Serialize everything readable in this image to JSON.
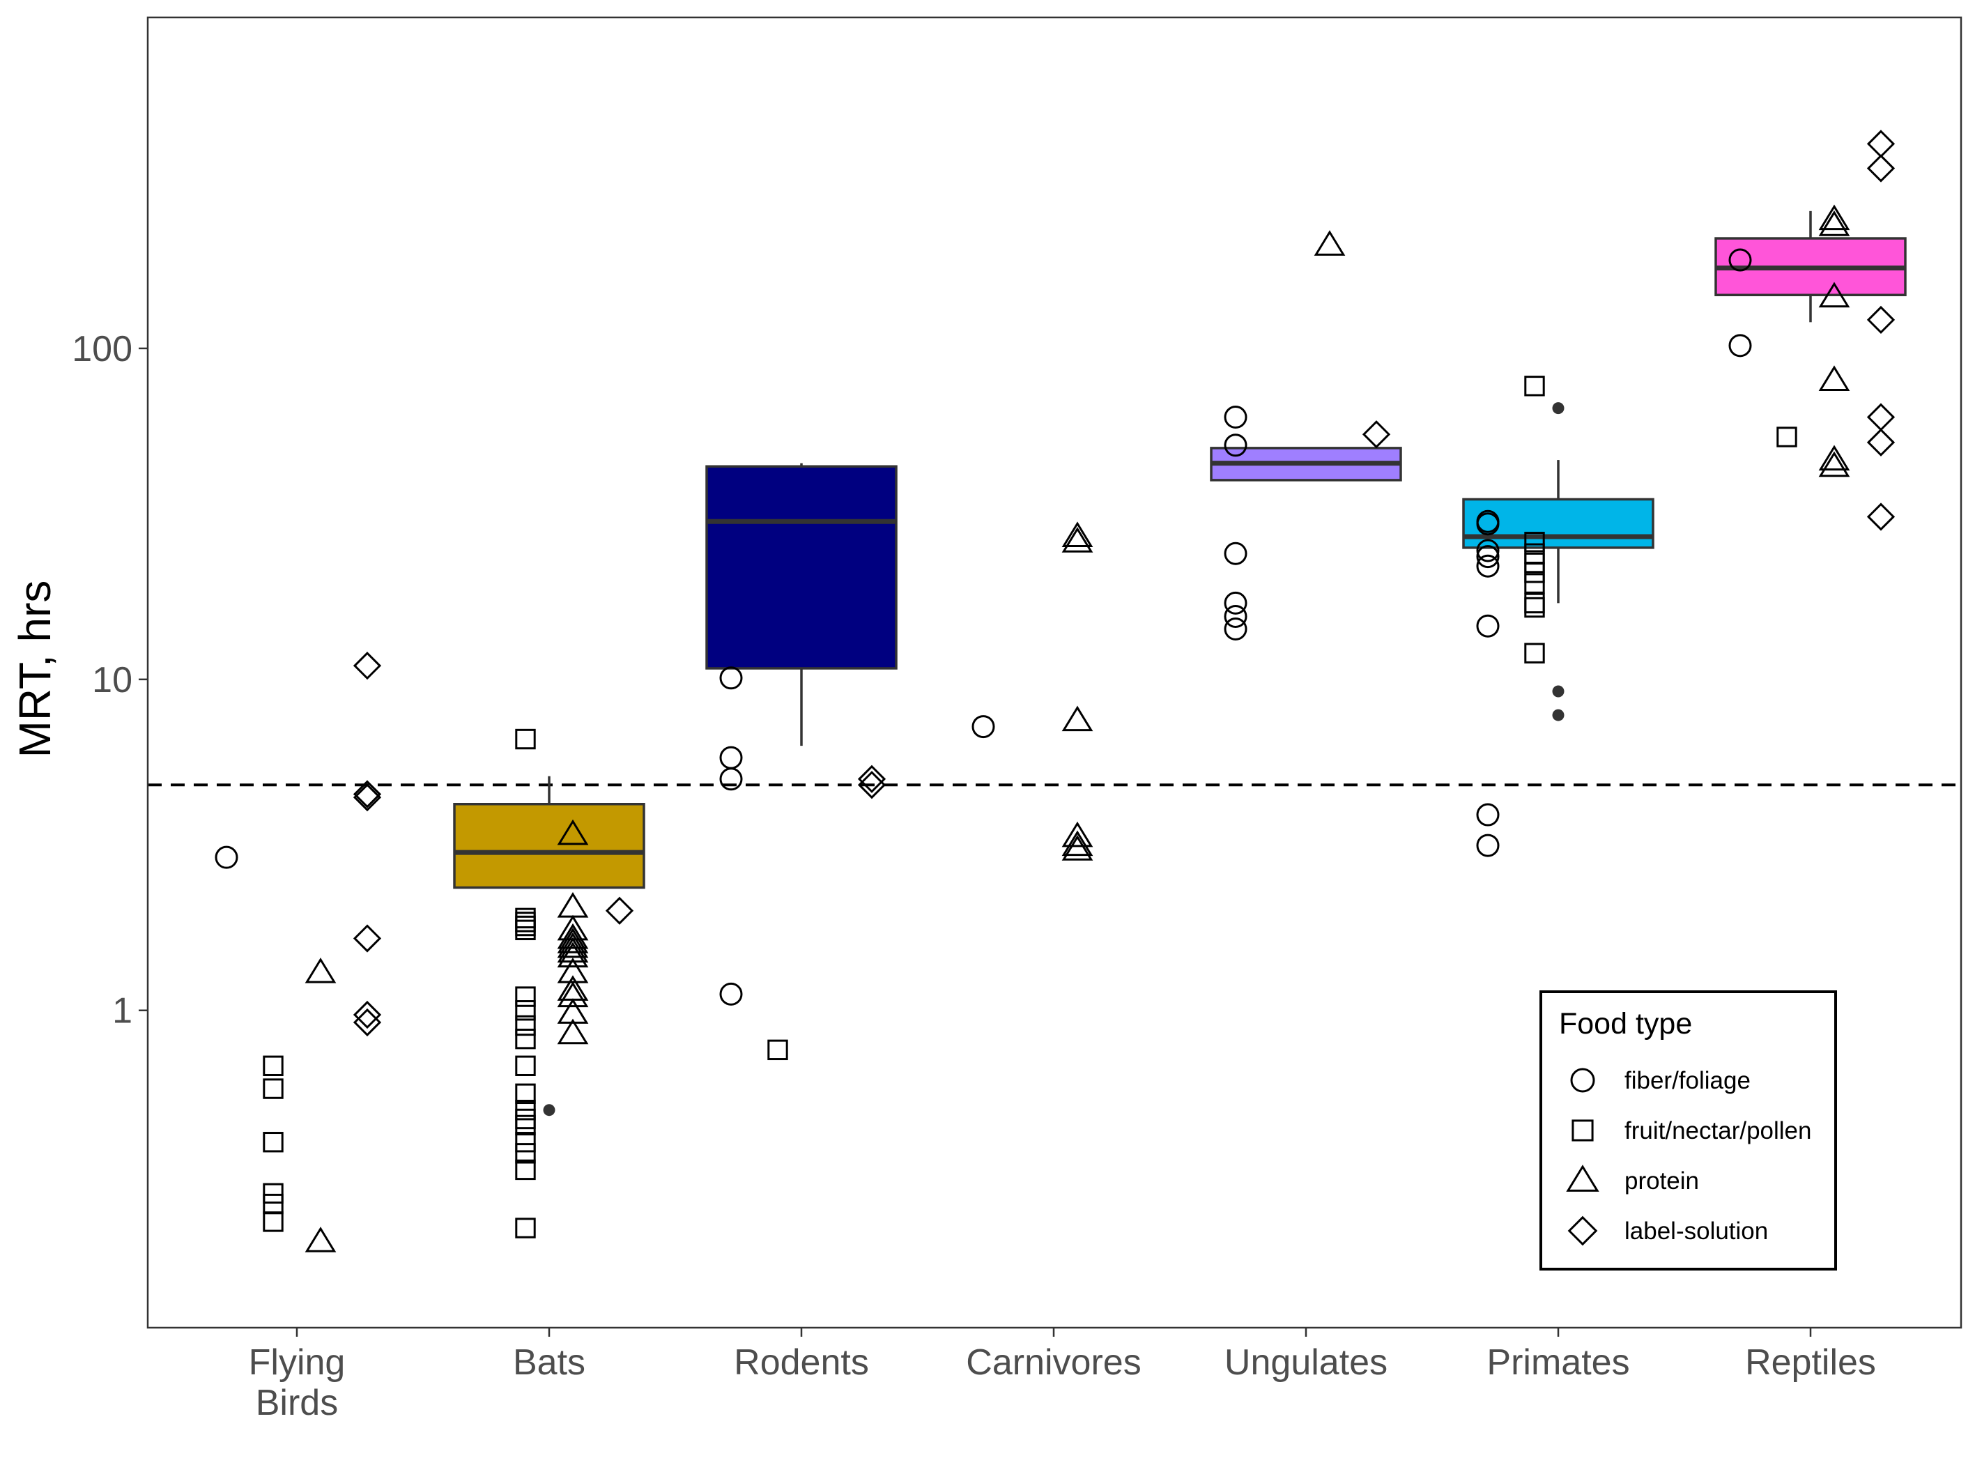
{
  "chart_data": {
    "type": "box+scatter",
    "ylabel": "MRT, hrs",
    "xlabel": "",
    "y_scale": "log10",
    "ylim": [
      0.11,
      1000
    ],
    "y_ticks": [
      {
        "value": 1,
        "label": "1"
      },
      {
        "value": 10,
        "label": "10"
      },
      {
        "value": 100,
        "label": "100"
      }
    ],
    "reference_line": {
      "y": 4.8,
      "style": "dashed"
    },
    "categories": [
      {
        "key": "birds",
        "label_lines": [
          "Flying",
          "Birds"
        ]
      },
      {
        "key": "bats",
        "label_lines": [
          "Bats"
        ]
      },
      {
        "key": "rodents",
        "label_lines": [
          "Rodents"
        ]
      },
      {
        "key": "carnivores",
        "label_lines": [
          "Carnivores"
        ]
      },
      {
        "key": "ungulates",
        "label_lines": [
          "Ungulates"
        ]
      },
      {
        "key": "primates",
        "label_lines": [
          "Primates"
        ]
      },
      {
        "key": "reptiles",
        "label_lines": [
          "Reptiles"
        ]
      }
    ],
    "boxes": [
      {
        "category": "bats",
        "q1": 2.35,
        "median": 3.0,
        "q3": 4.2,
        "whisker_low": 2.35,
        "whisker_high": 5.1,
        "fill": "#C39900",
        "outliers": [
          0.5
        ]
      },
      {
        "category": "rodents",
        "q1": 10.8,
        "median": 30.0,
        "q3": 44.0,
        "whisker_low": 6.3,
        "whisker_high": 45.0,
        "fill": "#000080",
        "outliers": []
      },
      {
        "category": "ungulates",
        "q1": 40.0,
        "median": 45.0,
        "q3": 50.0,
        "whisker_low": 40.0,
        "whisker_high": 50.0,
        "fill": "#9F7FFF",
        "outliers": []
      },
      {
        "category": "primates",
        "q1": 25.0,
        "median": 27.0,
        "q3": 35.0,
        "whisker_low": 17.0,
        "whisker_high": 46.0,
        "fill": "#00B5E8",
        "outliers": [
          66,
          9.2,
          7.8
        ]
      },
      {
        "category": "reptiles",
        "q1": 145.0,
        "median": 175.0,
        "q3": 215.0,
        "whisker_low": 120.0,
        "whisker_high": 260.0,
        "fill": "#FF55D9",
        "outliers": []
      }
    ],
    "legend": {
      "title": "Food type",
      "position": "bottom-right",
      "items": [
        {
          "key": "fiber",
          "label": "fiber/foliage",
          "shape": "circle"
        },
        {
          "key": "fruit",
          "label": "fruit/nectar/pollen",
          "shape": "square"
        },
        {
          "key": "protein",
          "label": "protein",
          "shape": "triangle"
        },
        {
          "key": "label",
          "label": "label-solution",
          "shape": "diamond"
        }
      ]
    },
    "points": [
      {
        "category": "birds",
        "food": "fiber",
        "values": [
          2.9
        ]
      },
      {
        "category": "birds",
        "food": "fruit",
        "values": [
          0.68,
          0.58,
          0.4,
          0.28,
          0.26,
          0.23
        ]
      },
      {
        "category": "birds",
        "food": "protein",
        "values": [
          1.3,
          0.2
        ]
      },
      {
        "category": "birds",
        "food": "label",
        "values": [
          11.0,
          4.5,
          4.4,
          1.65,
          0.97,
          0.92
        ]
      },
      {
        "category": "bats",
        "food": "fruit",
        "values": [
          6.6,
          1.9,
          1.85,
          1.8,
          1.75,
          1.1,
          1.0,
          0.9,
          0.82,
          0.68,
          0.56,
          0.5,
          0.47,
          0.45,
          0.4,
          0.37,
          0.33,
          0.22
        ]
      },
      {
        "category": "bats",
        "food": "protein",
        "values": [
          3.4,
          2.05,
          1.75,
          1.65,
          1.6,
          1.55,
          1.5,
          1.45,
          1.3,
          1.15,
          1.1,
          0.98,
          0.85
        ]
      },
      {
        "category": "bats",
        "food": "label",
        "values": [
          2.0
        ]
      },
      {
        "category": "rodents",
        "food": "fiber",
        "values": [
          10.1,
          5.8,
          5.0,
          1.12
        ]
      },
      {
        "category": "rodents",
        "food": "fruit",
        "values": [
          0.76
        ]
      },
      {
        "category": "rodents",
        "food": "label",
        "values": [
          5.0,
          4.8
        ]
      },
      {
        "category": "carnivores",
        "food": "fiber",
        "values": [
          7.2
        ]
      },
      {
        "category": "carnivores",
        "food": "protein",
        "values": [
          27.0,
          26.0,
          7.5,
          3.35,
          3.15,
          3.05
        ]
      },
      {
        "category": "ungulates",
        "food": "fiber",
        "values": [
          62.0,
          51.0,
          24.0,
          17.0,
          15.5,
          14.2
        ]
      },
      {
        "category": "ungulates",
        "food": "protein",
        "values": [
          205.0
        ]
      },
      {
        "category": "ungulates",
        "food": "label",
        "values": [
          55.0
        ]
      },
      {
        "category": "primates",
        "food": "fiber",
        "values": [
          30.0,
          29.5,
          24.5,
          23.5,
          22.0,
          14.5,
          3.9,
          3.15
        ]
      },
      {
        "category": "primates",
        "food": "fruit",
        "values": [
          77.0,
          26.0,
          24.0,
          22.5,
          21.0,
          19.5,
          17.0,
          16.5,
          12.0
        ]
      },
      {
        "category": "reptiles",
        "food": "fiber",
        "values": [
          185.0,
          102.0
        ]
      },
      {
        "category": "reptiles",
        "food": "fruit",
        "values": [
          54.0
        ]
      },
      {
        "category": "reptiles",
        "food": "protein",
        "values": [
          245.0,
          235.0,
          143.0,
          80.0,
          46.0,
          44.0
        ]
      },
      {
        "category": "reptiles",
        "food": "label",
        "values": [
          415.0,
          350.0,
          122.0,
          62.0,
          52.0,
          31.0
        ]
      }
    ]
  }
}
